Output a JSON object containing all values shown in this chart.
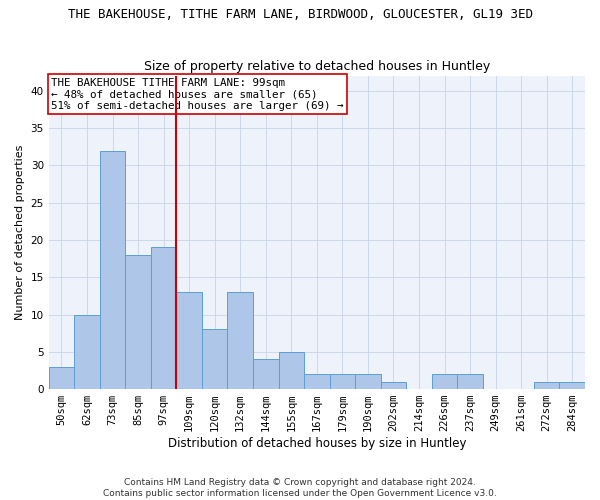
{
  "title": "THE BAKEHOUSE, TITHE FARM LANE, BIRDWOOD, GLOUCESTER, GL19 3ED",
  "subtitle": "Size of property relative to detached houses in Huntley",
  "xlabel": "Distribution of detached houses by size in Huntley",
  "ylabel": "Number of detached properties",
  "categories": [
    "50sqm",
    "62sqm",
    "73sqm",
    "85sqm",
    "97sqm",
    "109sqm",
    "120sqm",
    "132sqm",
    "144sqm",
    "155sqm",
    "167sqm",
    "179sqm",
    "190sqm",
    "202sqm",
    "214sqm",
    "226sqm",
    "237sqm",
    "249sqm",
    "261sqm",
    "272sqm",
    "284sqm"
  ],
  "values": [
    3,
    10,
    32,
    18,
    19,
    13,
    8,
    13,
    4,
    5,
    2,
    2,
    2,
    1,
    0,
    2,
    2,
    0,
    0,
    1,
    1
  ],
  "bar_color": "#aec6e8",
  "bar_edge_color": "#5a9fd4",
  "annotation_line1": "THE BAKEHOUSE TITHE FARM LANE: 99sqm",
  "annotation_line2": "← 48% of detached houses are smaller (65)",
  "annotation_line3": "51% of semi-detached houses are larger (69) →",
  "vline_color": "#cc0000",
  "vline_x": 4.5,
  "ylim": [
    0,
    42
  ],
  "yticks": [
    0,
    5,
    10,
    15,
    20,
    25,
    30,
    35,
    40
  ],
  "footnote1": "Contains HM Land Registry data © Crown copyright and database right 2024.",
  "footnote2": "Contains public sector information licensed under the Open Government Licence v3.0.",
  "background_color": "#eef2fb",
  "grid_color": "#c8d4e8",
  "title_fontsize": 9,
  "subtitle_fontsize": 9,
  "xlabel_fontsize": 8.5,
  "ylabel_fontsize": 8,
  "annot_fontsize": 7.8,
  "tick_fontsize": 7.5,
  "footnote_fontsize": 6.5
}
